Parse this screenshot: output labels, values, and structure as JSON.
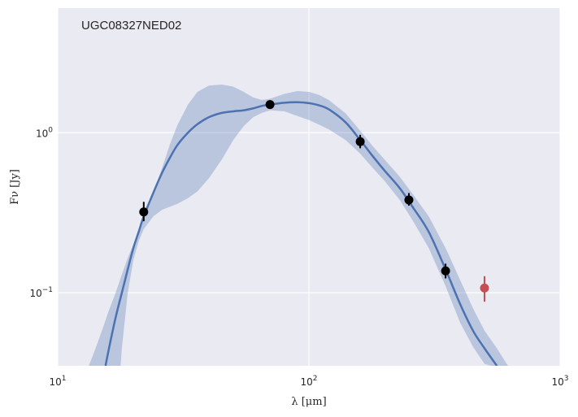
{
  "chart_data": {
    "type": "scatter",
    "title": "UGC08327NED02",
    "xlabel": "λ [μm]",
    "ylabel": "Fν [Jy]",
    "xscale": "log",
    "yscale": "log",
    "xlim": [
      10,
      1000
    ],
    "ylim": [
      0.035,
      6.0
    ],
    "grid": true,
    "x_ticks": [
      {
        "value": 10,
        "base": "10",
        "exp": "1"
      },
      {
        "value": 100,
        "base": "10",
        "exp": "2"
      },
      {
        "value": 1000,
        "base": "10",
        "exp": "3"
      }
    ],
    "y_ticks": [
      {
        "value": 0.1,
        "base": "10",
        "exp": "−1"
      },
      {
        "value": 1,
        "base": "10",
        "exp": "0"
      }
    ],
    "colors": {
      "background": "#eaeaf2",
      "grid": "#ffffff",
      "model_line": "#4c72b0",
      "band": "#4c72b0",
      "points": "#000000",
      "upper_point": "#c44e52"
    },
    "model_curve": {
      "x": [
        15.5,
        16,
        17,
        18,
        19,
        20,
        21,
        22,
        24,
        26,
        28,
        30,
        33,
        36,
        40,
        45,
        50,
        55,
        60,
        65,
        70,
        80,
        90,
        100,
        110,
        120,
        140,
        160,
        180,
        200,
        230,
        260,
        300,
        350,
        400,
        450,
        500,
        560
      ],
      "y": [
        0.035,
        0.045,
        0.07,
        0.1,
        0.14,
        0.19,
        0.24,
        0.3,
        0.42,
        0.56,
        0.7,
        0.84,
        1.0,
        1.13,
        1.25,
        1.33,
        1.36,
        1.38,
        1.42,
        1.47,
        1.5,
        1.54,
        1.55,
        1.53,
        1.48,
        1.4,
        1.16,
        0.9,
        0.71,
        0.58,
        0.45,
        0.34,
        0.24,
        0.14,
        0.085,
        0.058,
        0.045,
        0.035
      ]
    },
    "uncertainty_band": {
      "x_upper": [
        13.3,
        14,
        15,
        16,
        17,
        18,
        19,
        20,
        21,
        22,
        24,
        26,
        28,
        30,
        33,
        36,
        40,
        45,
        50,
        55,
        60,
        65,
        70,
        80,
        90,
        100,
        110,
        120,
        140,
        160,
        180,
        200,
        230,
        260,
        300,
        350,
        400,
        450,
        500,
        560,
        620
      ],
      "y_upper": [
        0.035,
        0.043,
        0.058,
        0.078,
        0.1,
        0.13,
        0.165,
        0.2,
        0.245,
        0.3,
        0.42,
        0.6,
        0.85,
        1.12,
        1.5,
        1.8,
        1.97,
        2.0,
        1.94,
        1.8,
        1.66,
        1.6,
        1.63,
        1.75,
        1.82,
        1.8,
        1.72,
        1.6,
        1.32,
        1.03,
        0.82,
        0.68,
        0.53,
        0.41,
        0.3,
        0.19,
        0.12,
        0.08,
        0.058,
        0.045,
        0.035
      ],
      "x_lower": [
        17.8,
        18,
        19,
        20,
        21,
        22,
        24,
        26,
        28,
        30,
        33,
        36,
        40,
        45,
        50,
        55,
        60,
        65,
        70,
        80,
        90,
        100,
        110,
        120,
        140,
        160,
        180,
        200,
        230,
        260,
        300,
        350,
        400,
        450,
        500,
        530
      ],
      "y_lower": [
        0.035,
        0.045,
        0.1,
        0.16,
        0.21,
        0.25,
        0.3,
        0.33,
        0.345,
        0.36,
        0.39,
        0.43,
        0.52,
        0.68,
        0.9,
        1.1,
        1.25,
        1.33,
        1.38,
        1.36,
        1.27,
        1.2,
        1.12,
        1.05,
        0.9,
        0.74,
        0.6,
        0.5,
        0.38,
        0.28,
        0.19,
        0.11,
        0.065,
        0.046,
        0.036,
        0.035
      ]
    },
    "points": [
      {
        "x": 22,
        "y": 0.32,
        "y_lo": 0.28,
        "y_hi": 0.37
      },
      {
        "x": 70,
        "y": 1.5,
        "y_lo": 1.44,
        "y_hi": 1.56
      },
      {
        "x": 160,
        "y": 0.88,
        "y_lo": 0.8,
        "y_hi": 0.97
      },
      {
        "x": 250,
        "y": 0.38,
        "y_lo": 0.35,
        "y_hi": 0.42
      },
      {
        "x": 350,
        "y": 0.137,
        "y_lo": 0.123,
        "y_hi": 0.152
      }
    ],
    "excluded_points": [
      {
        "x": 500,
        "y": 0.107,
        "y_lo": 0.088,
        "y_hi": 0.127
      }
    ]
  }
}
